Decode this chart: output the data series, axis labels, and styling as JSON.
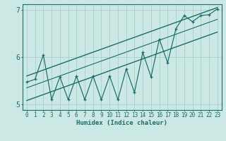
{
  "title": "",
  "xlabel": "Humidex (Indice chaleur)",
  "ylabel": "",
  "bg_color": "#cce8e4",
  "line_color": "#1a6b6b",
  "grid_color": "#aad4ce",
  "xlim": [
    -0.5,
    23.5
  ],
  "ylim": [
    4.88,
    7.12
  ],
  "yticks": [
    5,
    6,
    7
  ],
  "xticks": [
    0,
    1,
    2,
    3,
    4,
    5,
    6,
    7,
    8,
    9,
    10,
    11,
    12,
    13,
    14,
    15,
    16,
    17,
    18,
    19,
    20,
    21,
    22,
    23
  ],
  "zigzag_x": [
    0,
    1,
    2,
    3,
    4,
    5,
    6,
    7,
    8,
    9,
    10,
    11,
    12,
    13,
    14,
    15,
    16,
    17,
    18,
    19,
    20,
    21,
    22,
    23
  ],
  "zigzag_y": [
    5.47,
    5.53,
    6.05,
    5.1,
    5.58,
    5.1,
    5.6,
    5.1,
    5.6,
    5.1,
    5.6,
    5.1,
    5.75,
    5.25,
    6.1,
    5.58,
    6.38,
    5.88,
    6.6,
    6.88,
    6.75,
    6.88,
    6.9,
    7.02
  ],
  "upper_line": [
    [
      0,
      5.6
    ],
    [
      23,
      7.05
    ]
  ],
  "lower_line": [
    [
      0,
      5.08
    ],
    [
      23,
      6.53
    ]
  ],
  "mid_line": [
    [
      0,
      5.35
    ],
    [
      23,
      6.8
    ]
  ],
  "font_family": "monospace"
}
